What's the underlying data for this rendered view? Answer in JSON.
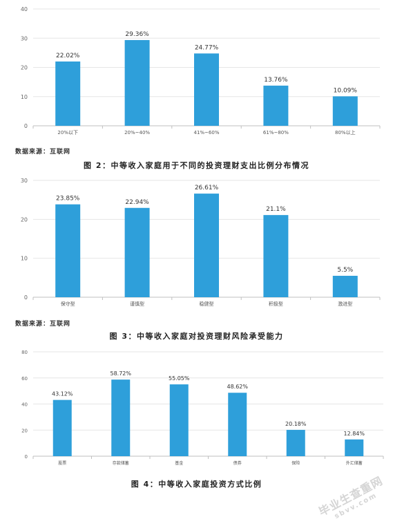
{
  "chart_data": [
    {
      "type": "bar",
      "categories": [
        "20%以下",
        "20%~40%",
        "41%~60%",
        "61%~80%",
        "80%以上"
      ],
      "values": [
        22.02,
        29.36,
        24.77,
        13.76,
        10.09
      ],
      "value_labels": [
        "22.02%",
        "29.36%",
        "24.77%",
        "13.76%",
        "10.09%"
      ],
      "ylim": [
        0,
        40
      ],
      "yticks": [
        0,
        10,
        20,
        30,
        40
      ],
      "bar_color": "#2e9fda"
    },
    {
      "type": "bar",
      "categories": [
        "保守型",
        "谨慎型",
        "稳健型",
        "积极型",
        "激进型"
      ],
      "values": [
        23.85,
        22.94,
        26.61,
        21.1,
        5.5
      ],
      "value_labels": [
        "23.85%",
        "22.94%",
        "26.61%",
        "21.1%",
        "5.5%"
      ],
      "ylim": [
        0,
        30
      ],
      "yticks": [
        0,
        10,
        20,
        30
      ],
      "bar_color": "#2e9fda"
    },
    {
      "type": "bar",
      "categories": [
        "股票",
        "存款储蓄",
        "基金",
        "债券",
        "保险",
        "外汇储蓄"
      ],
      "values": [
        43.12,
        58.72,
        55.05,
        48.62,
        20.18,
        12.84
      ],
      "value_labels": [
        "43.12%",
        "58.72%",
        "55.05%",
        "48.62%",
        "20.18%",
        "12.84%"
      ],
      "ylim": [
        0,
        80
      ],
      "yticks": [
        0,
        20,
        40,
        60,
        80
      ],
      "bar_color": "#2e9fda"
    }
  ],
  "sources": [
    "数据来源：互联网",
    "数据来源：互联网"
  ],
  "captions": [
    "图 2：中等收入家庭用于不同的投资理财支出比例分布情况",
    "图 3：中等收入家庭对投资理财风险承受能力",
    "图 4：中等收入家庭投资方式比例"
  ],
  "watermark": {
    "main": "毕业生查重网",
    "sub": "sbvv.com"
  }
}
